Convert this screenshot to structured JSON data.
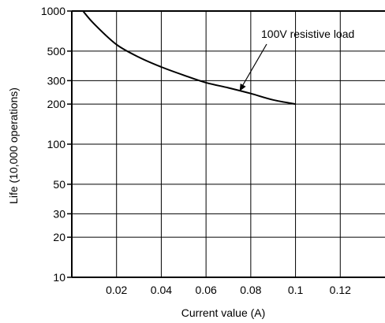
{
  "chart_data": {
    "type": "line",
    "title": "",
    "xlabel": "Current value (A)",
    "ylabel": "Life (10,000 operations)",
    "xlim": [
      0,
      0.14
    ],
    "ylim": [
      10,
      1000
    ],
    "yscale": "log",
    "grid": true,
    "x_ticks": [
      "0.02",
      "0.04",
      "0.06",
      "0.08",
      "0.1",
      "0.12"
    ],
    "y_ticks": [
      "10",
      "20",
      "30",
      "50",
      "100",
      "200",
      "300",
      "500",
      "1000"
    ],
    "series": [
      {
        "name": "100V resistive load",
        "x": [
          0.005,
          0.01,
          0.02,
          0.03,
          0.04,
          0.05,
          0.06,
          0.07,
          0.08,
          0.09,
          0.1
        ],
        "y": [
          1000,
          800,
          560,
          450,
          380,
          330,
          290,
          265,
          240,
          215,
          200
        ]
      }
    ],
    "annotations": [
      {
        "text": "100V resistive load",
        "points_to": {
          "x": 0.075,
          "y": 250
        }
      }
    ]
  }
}
